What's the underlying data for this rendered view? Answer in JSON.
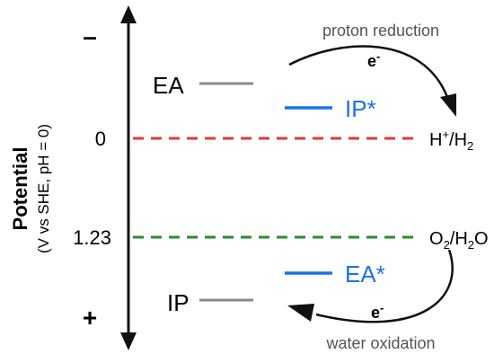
{
  "axis": {
    "title": "Potential",
    "subtitle": "(V vs SHE, pH = 0)",
    "top_sign": "–",
    "bottom_sign": "+",
    "ticks": [
      {
        "label": "0",
        "value": 0
      },
      {
        "label": "1.23",
        "value": 1.23
      }
    ]
  },
  "levels": {
    "ea": {
      "label": "EA",
      "color": "#8a8a8a"
    },
    "ip_star": {
      "label": "IP*",
      "color": "#1a73e8"
    },
    "ea_star": {
      "label": "EA*",
      "color": "#1a73e8"
    },
    "ip": {
      "label": "IP",
      "color": "#8a8a8a"
    }
  },
  "reference_lines": {
    "h_line": {
      "label_main": "H",
      "label_sup": "+",
      "label_mid": "/H",
      "label_sub": "2",
      "color": "#e53935",
      "potential": 0
    },
    "o_line": {
      "label_main": "O",
      "label_sub": "2",
      "label_mid": "/H",
      "label_sub2": "2",
      "label_end": "O",
      "color": "#2e8b2e",
      "potential": 1.23
    }
  },
  "processes": {
    "reduction": {
      "label": "proton reduction",
      "electron": "e",
      "electron_sup": "-"
    },
    "oxidation": {
      "label": "water oxidation",
      "electron": "e",
      "electron_sup": "-"
    }
  },
  "colors": {
    "axis": "#111111",
    "text": "#111111",
    "arrow": "#111111",
    "process_text": "#555555"
  }
}
